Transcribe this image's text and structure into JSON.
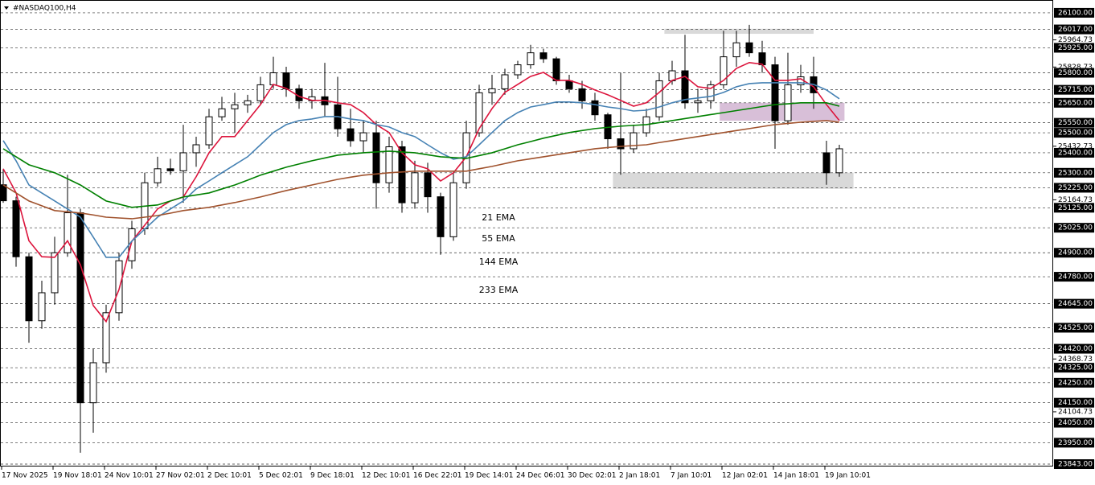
{
  "chart_data": {
    "type": "candlestick",
    "title": "#NASDAQ100,H4",
    "categories": [
      "17 Nov 2025",
      null,
      null,
      null,
      "19 Nov 18:01",
      null,
      null,
      null,
      "24 Nov 10:01",
      null,
      null,
      null,
      "27 Nov 02:01",
      null,
      null,
      null,
      "2 Dec 10:01",
      null,
      null,
      null,
      "5 Dec 02:01",
      null,
      null,
      null,
      "9 Dec 18:01",
      null,
      null,
      null,
      "12 Dec 10:01",
      null,
      null,
      null,
      "16 Dec 22:01",
      null,
      null,
      null,
      "19 Dec 14:01",
      null,
      null,
      null,
      "24 Dec 06:01",
      null,
      null,
      null,
      "30 Dec 02:01",
      null,
      null,
      null,
      "2 Jan 18:01",
      null,
      null,
      null,
      "7 Jan 10:01",
      null,
      null,
      null,
      "12 Jan 02:01",
      null,
      null,
      null,
      "14 Jan 18:01",
      null,
      null,
      null,
      "19 Jan 10:01",
      null
    ],
    "open": [
      25240,
      25160,
      24880,
      24560,
      24700,
      24900,
      25100,
      24150,
      24350,
      24600,
      24860,
      25020,
      25250,
      25320,
      25310,
      25400,
      25440,
      25580,
      25620,
      25640,
      25660,
      25740,
      25800,
      25720,
      25660,
      25680,
      25640,
      25520,
      25460,
      25500,
      25250,
      25430,
      25150,
      25300,
      25180,
      24980,
      25250,
      25500,
      25700,
      25720,
      25790,
      25840,
      25900,
      25870,
      25760,
      25720,
      25660,
      25590,
      25470,
      25420,
      25500,
      25580,
      25760,
      25810,
      25650,
      25660,
      25740,
      25880,
      25950,
      25900,
      25840,
      25560,
      25740,
      25780,
      25400,
      25300
    ],
    "high": [
      25320,
      25180,
      24900,
      24760,
      24980,
      25290,
      25120,
      24420,
      24640,
      24900,
      25060,
      25300,
      25380,
      25370,
      25540,
      25480,
      25620,
      25680,
      25700,
      25690,
      25780,
      25880,
      25830,
      25740,
      25720,
      25850,
      25780,
      25620,
      25560,
      25560,
      25480,
      25460,
      25360,
      25350,
      25200,
      25300,
      25560,
      25740,
      25790,
      25820,
      25860,
      25940,
      25920,
      25880,
      25790,
      25760,
      25700,
      25600,
      25800,
      25540,
      25620,
      25800,
      25860,
      25990,
      25720,
      25760,
      26010,
      26010,
      26040,
      25960,
      25880,
      25900,
      25840,
      25880,
      25460,
      25440
    ],
    "low": [
      25150,
      24830,
      24450,
      24520,
      24640,
      24880,
      23900,
      24000,
      24300,
      24560,
      24820,
      24990,
      25230,
      25290,
      25150,
      25330,
      25420,
      25560,
      25500,
      25600,
      25640,
      25720,
      25680,
      25620,
      25620,
      25580,
      25480,
      25430,
      25400,
      25120,
      25200,
      25100,
      25120,
      25100,
      24890,
      24960,
      25220,
      25480,
      25640,
      25690,
      25770,
      25820,
      25850,
      25740,
      25700,
      25620,
      25560,
      25420,
      25290,
      25400,
      25480,
      25560,
      25740,
      25620,
      25600,
      25620,
      25720,
      25830,
      25880,
      25800,
      25420,
      25540,
      25700,
      25620,
      25240,
      25280
    ],
    "close": [
      25160,
      24880,
      24560,
      24700,
      24900,
      25100,
      24150,
      24350,
      24600,
      24860,
      25020,
      25250,
      25320,
      25310,
      25400,
      25440,
      25580,
      25620,
      25640,
      25660,
      25740,
      25800,
      25720,
      25660,
      25680,
      25640,
      25520,
      25460,
      25500,
      25250,
      25430,
      25150,
      25300,
      25180,
      24980,
      25250,
      25500,
      25700,
      25720,
      25790,
      25840,
      25900,
      25870,
      25760,
      25720,
      25660,
      25590,
      25470,
      25420,
      25500,
      25580,
      25760,
      25810,
      25650,
      25660,
      25740,
      25880,
      25950,
      25900,
      25840,
      25560,
      25740,
      25780,
      25700,
      25300,
      25420
    ],
    "series": [
      {
        "name": "21 EMA",
        "color": "#dc143c",
        "values": [
          25320,
          25200,
          24960,
          24880,
          24877,
          24960,
          24840,
          24636,
          24556,
          24716,
          24958,
          25038,
          25119,
          25159,
          25179,
          25280,
          25400,
          25481,
          25481,
          25561,
          25641,
          25742,
          25722,
          25682,
          25662,
          25662,
          25650,
          25641,
          25601,
          25541,
          25501,
          25400,
          25340,
          25320,
          25259,
          25300,
          25380,
          25521,
          25621,
          25702,
          25742,
          25782,
          25802,
          25762,
          25762,
          25742,
          25714,
          25690,
          25662,
          25633,
          25650,
          25702,
          25762,
          25782,
          25730,
          25722,
          25762,
          25822,
          25851,
          25843,
          25762,
          25762,
          25770,
          25730,
          25641,
          25561
        ]
      },
      {
        "name": "55 EMA",
        "color": "#4682b4",
        "values": [
          25461,
          25360,
          25239,
          25199,
          25159,
          25119,
          25078,
          24978,
          24877,
          24877,
          24958,
          25018,
          25078,
          25119,
          25159,
          25219,
          25259,
          25300,
          25340,
          25380,
          25440,
          25501,
          25541,
          25561,
          25569,
          25581,
          25581,
          25569,
          25561,
          25541,
          25529,
          25501,
          25481,
          25440,
          25400,
          25368,
          25380,
          25440,
          25501,
          25561,
          25601,
          25629,
          25641,
          25654,
          25654,
          25650,
          25641,
          25629,
          25621,
          25609,
          25613,
          25629,
          25650,
          25666,
          25674,
          25682,
          25702,
          25730,
          25746,
          25750,
          25750,
          25750,
          25750,
          25742,
          25714,
          25670
        ]
      },
      {
        "name": "144 EMA",
        "color": "#008000",
        "values": [
          25420,
          25380,
          25340,
          25320,
          25300,
          25270,
          25239,
          25199,
          25159,
          25143,
          25127,
          25133,
          25139,
          25159,
          25179,
          25189,
          25199,
          25219,
          25239,
          25263,
          25288,
          25308,
          25328,
          25344,
          25360,
          25374,
          25388,
          25394,
          25400,
          25404,
          25408,
          25404,
          25400,
          25390,
          25380,
          25376,
          25372,
          25386,
          25400,
          25420,
          25440,
          25456,
          25473,
          25487,
          25501,
          25511,
          25521,
          25527,
          25533,
          25537,
          25541,
          25551,
          25561,
          25571,
          25581,
          25591,
          25601,
          25611,
          25621,
          25631,
          25641,
          25645,
          25650,
          25650,
          25650,
          25633
        ]
      },
      {
        "name": "233 EMA",
        "color": "#a0522d",
        "values": [
          25239,
          25199,
          25159,
          25135,
          25111,
          25105,
          25099,
          25089,
          25078,
          25074,
          25070,
          25078,
          25086,
          25098,
          25111,
          25119,
          25127,
          25139,
          25151,
          25165,
          25179,
          25195,
          25211,
          25225,
          25239,
          25253,
          25267,
          25278,
          25288,
          25294,
          25300,
          25304,
          25308,
          25308,
          25308,
          25308,
          25308,
          25320,
          25332,
          25346,
          25360,
          25370,
          25380,
          25390,
          25400,
          25410,
          25420,
          25426,
          25432,
          25436,
          25440,
          25451,
          25461,
          25471,
          25481,
          25491,
          25501,
          25511,
          25521,
          25531,
          25541,
          25547,
          25553,
          25557,
          25561,
          25553
        ]
      }
    ],
    "zones": [
      {
        "x": [
          51.4,
          63
        ],
        "y": [
          25995,
          26020
        ],
        "color": "#d9d9d9"
      },
      {
        "x": [
          47.4,
          66.1
        ],
        "y": [
          25220,
          25300
        ],
        "color": "#d9d9d9"
      },
      {
        "x": [
          55.7,
          65.4
        ],
        "y": [
          25560,
          25650
        ],
        "color": "#d8bfd8"
      }
    ],
    "ylim": [
      23831,
      26152
    ],
    "yticks": [
      {
        "value": 25964.73,
        "label": "25964.73"
      },
      {
        "value": 25828.73,
        "label": "25828.73"
      },
      {
        "value": 25432.73,
        "label": "25432.73"
      },
      {
        "value": 25164.73,
        "label": "25164.73"
      },
      {
        "value": 24368.73,
        "label": "24368.73"
      },
      {
        "value": 24104.73,
        "label": "24104.73"
      }
    ],
    "levels": [
      {
        "value": 26100,
        "label": "26100.00"
      },
      {
        "value": 26017,
        "label": "26017.00"
      },
      {
        "value": 25925,
        "label": "25925.00"
      },
      {
        "value": 25800,
        "label": "25800.00"
      },
      {
        "value": 25715,
        "label": "25715.00"
      },
      {
        "value": 25650,
        "label": "25650.00"
      },
      {
        "value": 25550,
        "label": "25550.00"
      },
      {
        "value": 25500,
        "label": "25500.00"
      },
      {
        "value": 25400,
        "label": "25400.00"
      },
      {
        "value": 25300,
        "label": "25300.00"
      },
      {
        "value": 25225,
        "label": "25225.00"
      },
      {
        "value": 25125,
        "label": "25125.00"
      },
      {
        "value": 25025,
        "label": "25025.00"
      },
      {
        "value": 24900,
        "label": "24900.00"
      },
      {
        "value": 24780,
        "label": "24780.00"
      },
      {
        "value": 24645,
        "label": "24645.00"
      },
      {
        "value": 24525,
        "label": "24525.00"
      },
      {
        "value": 24420,
        "label": "24420.00"
      },
      {
        "value": 24325,
        "label": "24325.00"
      },
      {
        "value": 24250,
        "label": "24250.00"
      },
      {
        "value": 24150,
        "label": "24150.00"
      },
      {
        "value": 24050,
        "label": "24050.00"
      },
      {
        "value": 23950,
        "label": "23950.00"
      },
      {
        "value": 23843,
        "label": "23843.00"
      }
    ],
    "grid": false
  }
}
